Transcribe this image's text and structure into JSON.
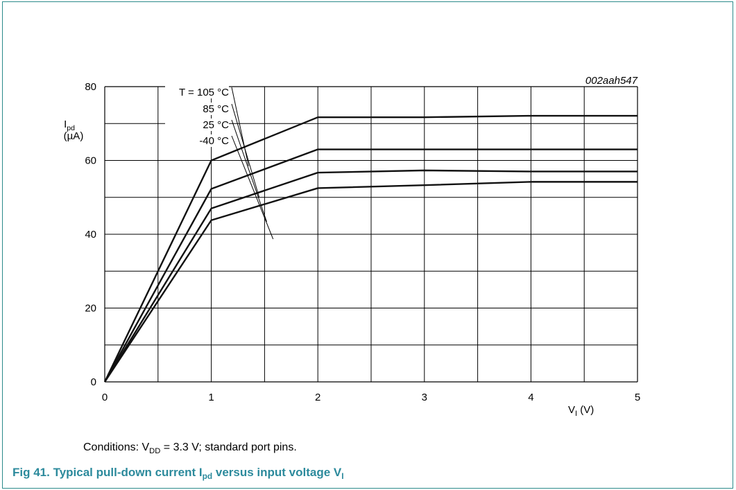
{
  "chart_data": {
    "type": "line",
    "figure_id": "002aah547",
    "ylabel_main": "I",
    "ylabel_sub": "pd",
    "ylabel_unit": "(µA)",
    "xlabel_main": "V",
    "xlabel_sub": "I",
    "xlabel_unit": " (V)",
    "xlim": [
      0,
      5
    ],
    "ylim": [
      0,
      80
    ],
    "xticks": [
      "0",
      "1",
      "2",
      "3",
      "4",
      "5"
    ],
    "yticks": [
      "0",
      "20",
      "40",
      "60",
      "80"
    ],
    "grid": true,
    "series": [
      {
        "name": "T = 105 °C",
        "x": [
          0,
          1,
          2,
          3,
          4,
          5
        ],
        "y": [
          0,
          60,
          71.7,
          71.7,
          72.1,
          72.1
        ]
      },
      {
        "name": "85 °C",
        "x": [
          0,
          1,
          2,
          3,
          4,
          5
        ],
        "y": [
          0,
          52.3,
          63,
          63,
          63,
          63
        ]
      },
      {
        "name": "25 °C",
        "x": [
          0,
          1,
          2,
          3,
          4,
          5
        ],
        "y": [
          0,
          47,
          56.7,
          57.3,
          57,
          57
        ]
      },
      {
        "name": "-40 °C",
        "x": [
          0,
          1,
          2,
          3,
          4,
          5
        ],
        "y": [
          0,
          43.8,
          52.5,
          53.3,
          54.2,
          54.2
        ]
      }
    ]
  },
  "caption": {
    "conditions_prefix": "Conditions: V",
    "conditions_sub": "DD",
    "conditions_rest": " = 3.3 V; standard port pins.",
    "figure_prefix": "Fig 41.   Typical pull-down current I",
    "figure_sub1": "pd",
    "figure_mid": " versus input voltage V",
    "figure_sub2": "I"
  }
}
